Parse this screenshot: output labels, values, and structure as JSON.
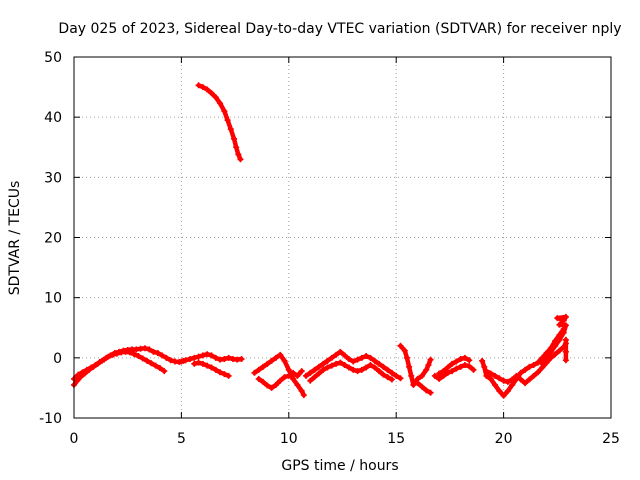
{
  "chart_data": {
    "type": "scatter",
    "title": "Day 025 of 2023, Sidereal Day-to-day VTEC variation (SDTVAR) for receiver nply",
    "xlabel": "GPS time / hours",
    "ylabel": "SDTVAR / TECUs",
    "xlim": [
      0,
      25
    ],
    "ylim": [
      -10,
      50
    ],
    "xticks": [
      0,
      5,
      10,
      15,
      20,
      25
    ],
    "xtick_labels": [
      "0",
      "5",
      "10",
      "15",
      "20",
      "25"
    ],
    "yticks": [
      -10,
      0,
      10,
      20,
      30,
      40,
      50
    ],
    "ytick_labels": [
      "-10",
      "0",
      "10",
      "20",
      "30",
      "40",
      "50"
    ],
    "grid": true,
    "marker": "plus",
    "color": "#ff0000",
    "series": [
      {
        "name": "high-arc",
        "points": [
          [
            5.8,
            45.3
          ],
          [
            6.0,
            45.0
          ],
          [
            6.2,
            44.6
          ],
          [
            6.4,
            44.0
          ],
          [
            6.6,
            43.3
          ],
          [
            6.8,
            42.3
          ],
          [
            7.0,
            41.0
          ],
          [
            7.15,
            39.5
          ],
          [
            7.3,
            38.0
          ],
          [
            7.45,
            36.4
          ],
          [
            7.55,
            35.0
          ],
          [
            7.65,
            33.8
          ],
          [
            7.75,
            33.0
          ]
        ]
      },
      {
        "name": "arc-early",
        "points": [
          [
            0.0,
            -4.5
          ],
          [
            0.15,
            -3.8
          ],
          [
            0.3,
            -3.2
          ],
          [
            0.5,
            -2.6
          ],
          [
            0.7,
            -2.0
          ],
          [
            0.9,
            -1.5
          ],
          [
            1.1,
            -1.0
          ],
          [
            1.3,
            -0.5
          ],
          [
            1.5,
            0.0
          ],
          [
            1.7,
            0.4
          ],
          [
            1.9,
            0.8
          ],
          [
            2.1,
            1.0
          ],
          [
            2.3,
            1.2
          ],
          [
            2.5,
            1.3
          ],
          [
            2.7,
            1.4
          ],
          [
            2.9,
            1.4
          ],
          [
            3.1,
            1.5
          ],
          [
            3.3,
            1.6
          ],
          [
            3.5,
            1.4
          ],
          [
            3.7,
            1.0
          ],
          [
            3.9,
            0.8
          ],
          [
            4.1,
            0.4
          ],
          [
            4.3,
            0.0
          ],
          [
            4.5,
            -0.4
          ],
          [
            4.7,
            -0.6
          ],
          [
            4.9,
            -0.7
          ],
          [
            5.1,
            -0.5
          ]
        ]
      },
      {
        "name": "arc-early-low",
        "points": [
          [
            0.0,
            -3.5
          ],
          [
            0.2,
            -2.8
          ],
          [
            0.4,
            -2.4
          ],
          [
            0.6,
            -2.0
          ],
          [
            0.8,
            -1.6
          ],
          [
            1.0,
            -1.2
          ],
          [
            1.2,
            -0.7
          ],
          [
            1.4,
            -0.3
          ],
          [
            1.6,
            0.2
          ],
          [
            1.8,
            0.5
          ],
          [
            2.0,
            0.7
          ],
          [
            2.2,
            0.9
          ],
          [
            2.4,
            1.0
          ],
          [
            2.6,
            0.9
          ],
          [
            2.8,
            0.6
          ],
          [
            3.0,
            0.3
          ],
          [
            3.2,
            -0.1
          ],
          [
            3.4,
            -0.5
          ],
          [
            3.6,
            -0.9
          ],
          [
            3.8,
            -1.3
          ],
          [
            4.0,
            -1.7
          ],
          [
            4.2,
            -2.2
          ]
        ]
      },
      {
        "name": "arc-morning",
        "points": [
          [
            5.0,
            -0.6
          ],
          [
            5.2,
            -0.4
          ],
          [
            5.4,
            -0.2
          ],
          [
            5.6,
            0.0
          ],
          [
            5.8,
            0.2
          ],
          [
            6.0,
            0.4
          ],
          [
            6.2,
            0.6
          ],
          [
            6.4,
            0.4
          ],
          [
            6.6,
            0.0
          ],
          [
            6.8,
            -0.3
          ],
          [
            7.0,
            -0.2
          ],
          [
            7.2,
            0.0
          ],
          [
            7.4,
            -0.2
          ],
          [
            7.6,
            -0.3
          ],
          [
            7.8,
            -0.2
          ],
          [
            5.6,
            -1.0
          ],
          [
            5.8,
            -0.8
          ],
          [
            6.0,
            -1.0
          ],
          [
            6.2,
            -1.3
          ],
          [
            6.4,
            -1.6
          ],
          [
            6.6,
            -2.0
          ],
          [
            6.8,
            -2.4
          ],
          [
            7.0,
            -2.7
          ],
          [
            7.2,
            -3.0
          ]
        ]
      },
      {
        "name": "arc-midday",
        "points": [
          [
            8.4,
            -2.5
          ],
          [
            8.6,
            -2.0
          ],
          [
            8.8,
            -1.5
          ],
          [
            9.0,
            -1.0
          ],
          [
            9.2,
            -0.5
          ],
          [
            9.4,
            0.0
          ],
          [
            9.6,
            0.5
          ],
          [
            9.8,
            -0.5
          ],
          [
            10.0,
            -2.0
          ],
          [
            10.2,
            -3.5
          ],
          [
            10.4,
            -4.5
          ],
          [
            10.6,
            -5.5
          ],
          [
            10.7,
            -6.2
          ],
          [
            8.6,
            -3.5
          ],
          [
            8.8,
            -4.0
          ],
          [
            9.0,
            -4.6
          ],
          [
            9.2,
            -5.0
          ],
          [
            9.4,
            -4.5
          ],
          [
            9.6,
            -3.8
          ],
          [
            9.8,
            -3.2
          ],
          [
            10.0,
            -3.0
          ],
          [
            10.2,
            -2.5
          ],
          [
            10.4,
            -3.0
          ],
          [
            10.6,
            -2.2
          ]
        ]
      },
      {
        "name": "arc-afternoon",
        "points": [
          [
            10.8,
            -3.0
          ],
          [
            11.0,
            -2.5
          ],
          [
            11.2,
            -2.0
          ],
          [
            11.4,
            -1.5
          ],
          [
            11.6,
            -1.0
          ],
          [
            11.8,
            -0.5
          ],
          [
            12.0,
            0.0
          ],
          [
            12.2,
            0.5
          ],
          [
            12.4,
            1.0
          ],
          [
            12.6,
            0.4
          ],
          [
            12.8,
            -0.2
          ],
          [
            13.0,
            -0.6
          ],
          [
            13.2,
            -0.3
          ],
          [
            13.4,
            0.0
          ],
          [
            13.6,
            0.3
          ],
          [
            13.8,
            0.0
          ],
          [
            14.0,
            -0.5
          ],
          [
            14.2,
            -1.0
          ],
          [
            14.4,
            -1.5
          ],
          [
            14.6,
            -2.0
          ],
          [
            14.8,
            -2.5
          ],
          [
            15.0,
            -3.0
          ],
          [
            15.2,
            -3.4
          ],
          [
            11.0,
            -3.8
          ],
          [
            11.2,
            -3.2
          ],
          [
            11.4,
            -2.6
          ],
          [
            11.6,
            -2.0
          ],
          [
            11.8,
            -1.6
          ],
          [
            12.0,
            -1.3
          ],
          [
            12.2,
            -1.0
          ],
          [
            12.4,
            -0.8
          ],
          [
            12.6,
            -1.2
          ],
          [
            12.8,
            -1.6
          ],
          [
            13.0,
            -2.0
          ],
          [
            13.2,
            -2.2
          ],
          [
            13.4,
            -2.0
          ],
          [
            13.6,
            -1.6
          ],
          [
            13.8,
            -1.2
          ],
          [
            14.0,
            -1.6
          ],
          [
            14.2,
            -2.2
          ],
          [
            14.4,
            -2.8
          ],
          [
            14.6,
            -3.2
          ],
          [
            14.8,
            -3.6
          ]
        ]
      },
      {
        "name": "arc-evening",
        "points": [
          [
            15.2,
            2.0
          ],
          [
            15.4,
            1.2
          ],
          [
            15.5,
            0.0
          ],
          [
            15.6,
            -1.5
          ],
          [
            15.7,
            -3.0
          ],
          [
            15.8,
            -4.5
          ],
          [
            16.0,
            -3.5
          ],
          [
            16.2,
            -3.0
          ],
          [
            16.4,
            -2.0
          ],
          [
            16.5,
            -1.2
          ],
          [
            16.6,
            -0.3
          ],
          [
            16.8,
            -3.0
          ],
          [
            17.0,
            -3.5
          ],
          [
            17.2,
            -3.0
          ],
          [
            17.4,
            -2.5
          ],
          [
            17.6,
            -2.2
          ],
          [
            17.8,
            -1.8
          ],
          [
            18.0,
            -1.5
          ],
          [
            18.2,
            -1.2
          ],
          [
            18.4,
            -1.4
          ],
          [
            18.6,
            -2.0
          ],
          [
            16.0,
            -4.2
          ],
          [
            16.2,
            -4.8
          ],
          [
            16.4,
            -5.4
          ],
          [
            16.6,
            -5.8
          ],
          [
            17.0,
            -2.6
          ],
          [
            17.2,
            -2.2
          ],
          [
            17.4,
            -1.6
          ],
          [
            17.6,
            -1.0
          ],
          [
            17.8,
            -0.6
          ],
          [
            18.0,
            -0.2
          ],
          [
            18.2,
            0.0
          ],
          [
            18.4,
            -0.4
          ]
        ]
      },
      {
        "name": "arc-night",
        "points": [
          [
            19.0,
            -0.5
          ],
          [
            19.1,
            -1.5
          ],
          [
            19.2,
            -3.0
          ],
          [
            19.4,
            -3.5
          ],
          [
            19.6,
            -4.5
          ],
          [
            19.8,
            -5.5
          ],
          [
            20.0,
            -6.3
          ],
          [
            20.2,
            -5.5
          ],
          [
            20.4,
            -4.5
          ],
          [
            20.6,
            -3.5
          ],
          [
            20.8,
            -2.5
          ],
          [
            21.0,
            -2.0
          ],
          [
            21.2,
            -1.5
          ],
          [
            21.4,
            -1.2
          ],
          [
            21.6,
            -0.8
          ],
          [
            21.8,
            0.0
          ],
          [
            22.0,
            0.8
          ],
          [
            22.2,
            1.6
          ],
          [
            22.4,
            2.8
          ],
          [
            22.6,
            3.8
          ],
          [
            22.8,
            4.8
          ],
          [
            19.2,
            -2.2
          ],
          [
            19.4,
            -2.6
          ],
          [
            19.6,
            -3.0
          ],
          [
            19.8,
            -3.4
          ],
          [
            20.0,
            -3.8
          ],
          [
            20.2,
            -4.0
          ],
          [
            20.4,
            -3.6
          ],
          [
            20.6,
            -3.0
          ],
          [
            20.8,
            -3.6
          ],
          [
            21.0,
            -4.2
          ],
          [
            21.2,
            -3.6
          ],
          [
            21.4,
            -3.0
          ],
          [
            21.6,
            -2.4
          ],
          [
            21.8,
            -1.6
          ],
          [
            22.0,
            -0.8
          ],
          [
            22.2,
            0.0
          ],
          [
            22.4,
            0.6
          ],
          [
            22.6,
            1.2
          ],
          [
            22.8,
            1.8
          ],
          [
            22.9,
            2.4
          ],
          [
            21.8,
            -1.0
          ],
          [
            22.0,
            0.0
          ],
          [
            22.2,
            1.0
          ],
          [
            22.4,
            2.0
          ],
          [
            22.6,
            3.0
          ],
          [
            22.8,
            4.2
          ],
          [
            22.9,
            5.4
          ],
          [
            22.6,
            5.5
          ],
          [
            22.8,
            6.2
          ],
          [
            22.9,
            6.8
          ],
          [
            22.5,
            6.6
          ],
          [
            22.7,
            6.4
          ],
          [
            22.9,
            3.0
          ],
          [
            22.9,
            1.0
          ],
          [
            22.9,
            -0.4
          ]
        ]
      }
    ]
  }
}
